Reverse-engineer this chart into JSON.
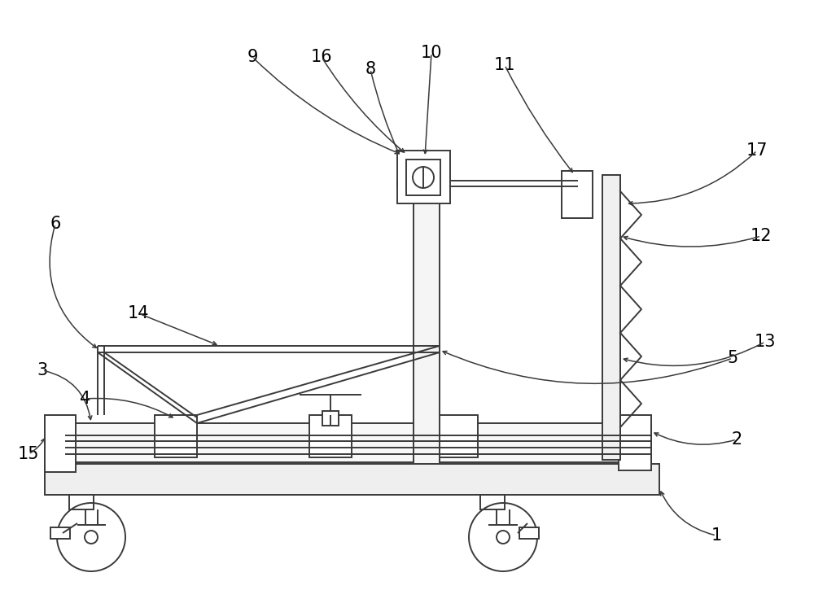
{
  "bg_color": "#ffffff",
  "lc": "#3a3a3a",
  "lw": 1.4,
  "fig_w": 10.0,
  "fig_h": 7.52,
  "dpi": 100
}
